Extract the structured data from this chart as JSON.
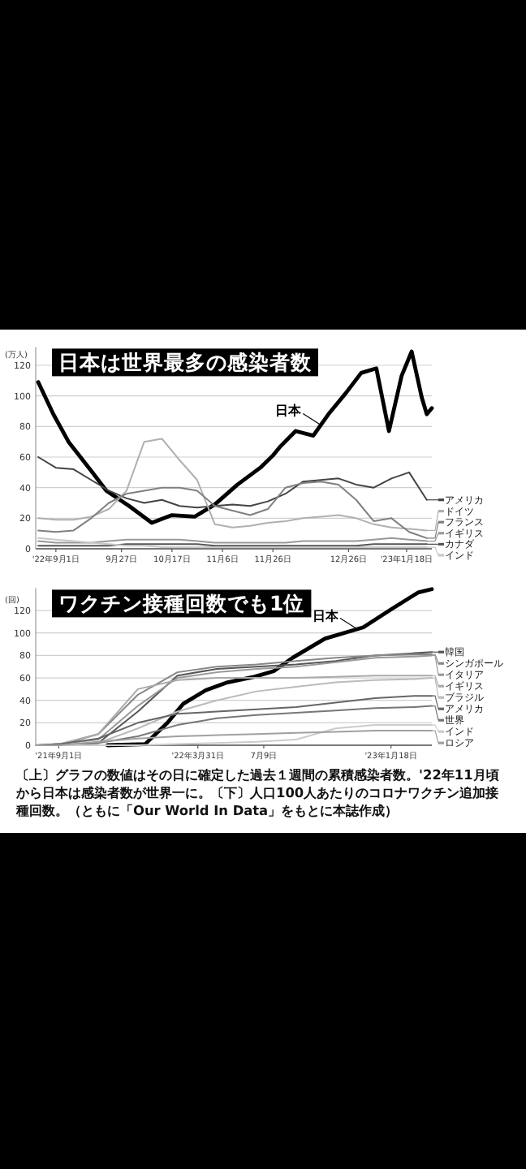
{
  "chart_data": [
    {
      "type": "line",
      "title": "日本は世界最多の感染者数",
      "ylabel": "(万人)",
      "grid": "y",
      "legend": "right",
      "x": [
        "2022-08-25",
        "2022-09-01",
        "2022-09-08",
        "2022-09-15",
        "2022-09-22",
        "2022-09-29",
        "2022-10-06",
        "2022-10-13",
        "2022-10-20",
        "2022-10-27",
        "2022-11-03",
        "2022-11-10",
        "2022-11-17",
        "2022-11-24",
        "2022-12-01",
        "2022-12-08",
        "2022-12-15",
        "2022-12-22",
        "2022-12-29",
        "2023-01-05",
        "2023-01-12",
        "2023-01-19",
        "2023-01-26"
      ],
      "xlim": [
        "2022-08-24",
        "2023-01-28"
      ],
      "ylim": [
        0,
        132
      ],
      "yticks": [
        0,
        20,
        40,
        60,
        80,
        100,
        120
      ],
      "xticks": [
        {
          "value": "2022-09-01",
          "label": "'22年9月1日"
        },
        {
          "value": "2022-09-27",
          "label": "9月27日"
        },
        {
          "value": "2022-10-17",
          "label": "10月17日"
        },
        {
          "value": "2022-11-06",
          "label": "11月6日"
        },
        {
          "value": "2022-11-26",
          "label": "11月26日"
        },
        {
          "value": "2022-12-26",
          "label": "12月26日"
        },
        {
          "value": "2023-01-18",
          "label": "'23年1月18日"
        }
      ],
      "annotations": [
        {
          "text": "日本",
          "x": "2022-12-15",
          "y": 81
        }
      ],
      "series": [
        {
          "color": "#000000",
          "x": [
            "2022-08-25",
            "2022-08-31",
            "2022-09-06",
            "2022-09-15",
            "2022-09-21",
            "2022-09-30",
            "2022-10-09",
            "2022-10-17",
            "2022-10-26",
            "2022-11-03",
            "2022-11-12",
            "2022-11-21",
            "2022-11-26",
            "2022-11-29",
            "2022-12-05",
            "2022-12-12",
            "2022-12-18",
            "2022-12-25",
            "2022-12-31",
            "2023-01-06",
            "2023-01-11",
            "2023-01-16",
            "2023-01-20",
            "2023-01-24",
            "2023-01-26",
            "2023-01-28"
          ],
          "values": [
            109,
            88,
            70,
            51,
            38,
            28,
            17,
            22,
            21,
            29,
            42,
            53,
            61,
            67,
            77,
            74,
            88,
            102,
            115,
            118,
            77,
            113,
            129,
            99,
            88,
            92
          ]
        },
        {
          "name": "アメリカ",
          "color": "#444444",
          "values": [
            60,
            53,
            52,
            45,
            38,
            33,
            30,
            32,
            28,
            27,
            28,
            29,
            28,
            31,
            36,
            44,
            45,
            46,
            42,
            40,
            46,
            50,
            32
          ]
        },
        {
          "name": "ドイツ",
          "color": "#b0b0b0",
          "values": [
            20,
            19,
            19,
            21,
            26,
            38,
            70,
            72,
            58,
            45,
            16,
            14,
            15,
            17,
            18,
            20,
            21,
            22,
            20,
            16,
            14,
            13,
            12
          ]
        },
        {
          "name": "フランス",
          "color": "#808080",
          "values": [
            12,
            11,
            12,
            20,
            30,
            36,
            38,
            40,
            40,
            38,
            28,
            25,
            22,
            26,
            40,
            43,
            44,
            42,
            32,
            18,
            20,
            11,
            7
          ]
        },
        {
          "name": "イギリス",
          "color": "#999999",
          "values": [
            5,
            4,
            4,
            4,
            5,
            6,
            6,
            6,
            6,
            5,
            4,
            4,
            4,
            4,
            4,
            5,
            5,
            5,
            5,
            6,
            7,
            6,
            5
          ]
        },
        {
          "name": "カナダ",
          "color": "#555555",
          "values": [
            2,
            2,
            2,
            2,
            2,
            3,
            3,
            3,
            3,
            3,
            2,
            2,
            2,
            2,
            2,
            2,
            2,
            2,
            2,
            3,
            3,
            3,
            3
          ]
        },
        {
          "name": "インド",
          "color": "#c8c8c8",
          "values": [
            7,
            6,
            5,
            4,
            3,
            2,
            2,
            1,
            1,
            1,
            1,
            1,
            1,
            1,
            1,
            1,
            1,
            1,
            1,
            1,
            1,
            1,
            1
          ]
        }
      ]
    },
    {
      "type": "line",
      "title": "ワクチン接種回数でも1位",
      "ylabel": "(回)",
      "grid": "y",
      "legend": "right",
      "x": [
        "2021-07-28",
        "2021-09-01",
        "2021-10-31",
        "2021-12-30",
        "2022-02-28",
        "2022-04-29",
        "2022-06-28",
        "2022-08-27",
        "2022-10-26",
        "2022-12-25",
        "2023-02-23",
        "2023-03-21"
      ],
      "xlim": [
        "2021-07-28",
        "2023-03-21"
      ],
      "ylim": [
        0,
        140
      ],
      "yticks": [
        0,
        20,
        40,
        60,
        80,
        100,
        120
      ],
      "xticks": [
        {
          "value": "2021-09-01",
          "label": "'21年9月1日"
        },
        {
          "value": "2022-03-31",
          "label": "'22年3月31日"
        },
        {
          "value": "2022-07-09",
          "label": "7月9日"
        },
        {
          "value": "2023-01-18",
          "label": "'23年1月18日"
        }
      ],
      "annotations": [
        {
          "text": "日本",
          "x": "2022-11-29",
          "y": 103
        },
        "〔上〕グラフの数値はその日に確定した過去１週間の累積感染者数。'22年11月頃から日本は感染者数が世界一に。〔下〕人口100人あたりのコロナワクチン追加接種回数。（ともに「Our World In Data」をもとに本誌作成）"
      ],
      "series": [
        {
          "color": "#000000",
          "x": [
            "2021-11-14",
            "2022-01-10",
            "2022-02-13",
            "2022-03-09",
            "2022-04-12",
            "2022-05-15",
            "2022-06-25",
            "2022-07-24",
            "2022-08-22",
            "2022-10-10",
            "2022-12-07",
            "2023-01-18",
            "2023-02-28",
            "2023-03-21"
          ],
          "values": [
            0,
            1,
            20,
            37,
            49,
            56,
            61,
            66,
            78,
            95,
            105,
            121,
            136,
            139
          ]
        },
        {
          "name": "韓国",
          "color": "#555555",
          "values": [
            0,
            0,
            2,
            30,
            62,
            68,
            70,
            72,
            75,
            80,
            82,
            83
          ]
        },
        {
          "name": "シンガポール",
          "color": "#888888",
          "values": [
            0,
            0,
            10,
            45,
            65,
            70,
            72,
            75,
            78,
            80,
            81,
            81
          ]
        },
        {
          "name": "イタリア",
          "color": "#9a9a9a",
          "values": [
            0,
            1,
            5,
            35,
            60,
            65,
            68,
            70,
            74,
            78,
            79,
            80
          ]
        },
        {
          "name": "イギリス",
          "color": "#aaaaaa",
          "values": [
            0,
            1,
            10,
            50,
            58,
            60,
            60,
            60,
            61,
            62,
            62,
            62
          ]
        },
        {
          "name": "ブラジル",
          "color": "#bbbbbb",
          "values": [
            0,
            0,
            2,
            15,
            30,
            40,
            48,
            52,
            56,
            58,
            59,
            60
          ]
        },
        {
          "name": "アメリカ",
          "color": "#666666",
          "values": [
            0,
            1,
            6,
            20,
            28,
            30,
            32,
            34,
            38,
            42,
            44,
            44
          ]
        },
        {
          "name": "世界",
          "color": "#777777",
          "values": [
            0,
            0,
            2,
            8,
            18,
            24,
            27,
            29,
            31,
            33,
            34,
            35
          ]
        },
        {
          "name": "インド",
          "color": "#cccccc",
          "values": [
            0,
            0,
            0,
            0,
            1,
            2,
            3,
            5,
            15,
            18,
            18,
            18
          ]
        },
        {
          "name": "ロシア",
          "color": "#a0a0a0",
          "values": [
            0,
            0,
            3,
            6,
            8,
            9,
            10,
            11,
            12,
            13,
            13,
            13
          ]
        }
      ]
    }
  ]
}
